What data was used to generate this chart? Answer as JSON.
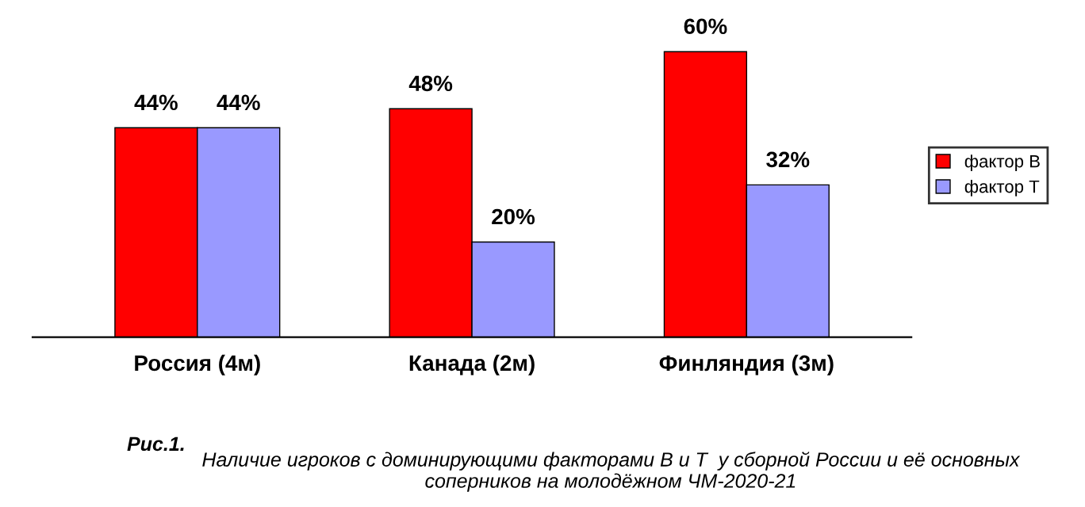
{
  "chart_data": {
    "type": "bar",
    "categories": [
      "Россия (4м)",
      "Канада (2м)",
      "Финляндия (3м)"
    ],
    "series": [
      {
        "name": "фактор В",
        "color": "#ff0000",
        "values": [
          44,
          48,
          60
        ],
        "value_labels": [
          "44%",
          "48%",
          "60%"
        ]
      },
      {
        "name": "фактор Т",
        "color": "#9999ff",
        "values": [
          44,
          20,
          32
        ],
        "value_labels": [
          "44%",
          "20%",
          "32%"
        ]
      }
    ],
    "legend": "right",
    "grid": false,
    "annotations": [
      "Рис.1.",
      "Наличие игроков с доминирующими факторами В и Т  у сборной России и её основных\nсоперников на молодёжном ЧМ-2020-21"
    ]
  }
}
